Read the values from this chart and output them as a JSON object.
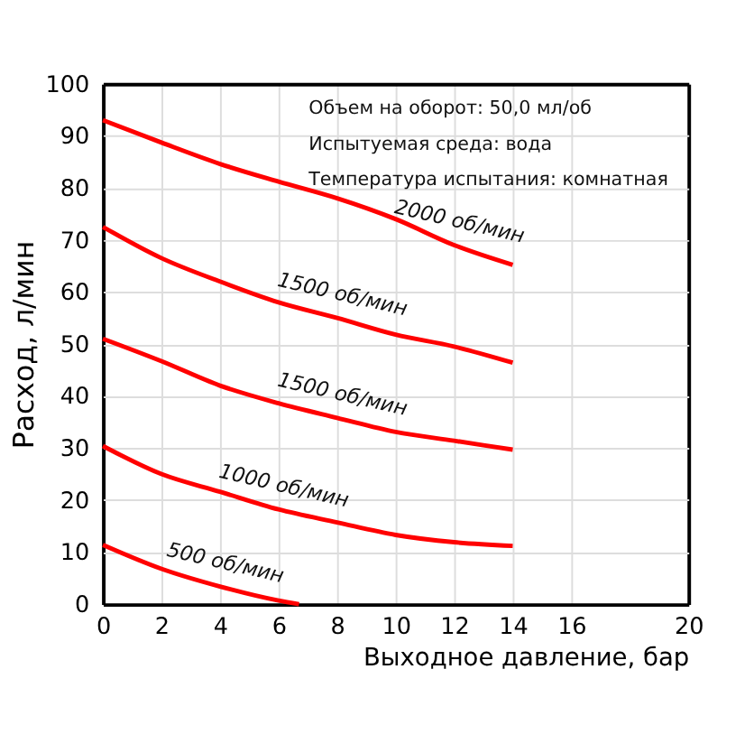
{
  "chart_data": {
    "type": "line",
    "xlabel": "Выходное давление, бар",
    "ylabel": "Расход, л/мин",
    "xlim": [
      0,
      20
    ],
    "xticks": [
      0,
      2,
      4,
      6,
      8,
      10,
      12,
      14,
      16,
      20
    ],
    "ylim": [
      0,
      100
    ],
    "yticks": [
      0,
      10,
      20,
      30,
      40,
      50,
      60,
      70,
      80,
      90,
      100
    ],
    "grid": true,
    "legend": false,
    "marker": "none",
    "line_style": "solid",
    "x": [
      0,
      2,
      4,
      6,
      8,
      10,
      12,
      14
    ],
    "series": [
      {
        "name": "2000 об/мин",
        "color": "#ff0000",
        "values": [
          93,
          88.7,
          84.6,
          81.2,
          78,
          74,
          69,
          65.2
        ]
      },
      {
        "name": "1500 об/мин",
        "color": "#ff0000",
        "values": [
          72.5,
          66.5,
          62,
          58,
          55,
          51.8,
          49.5,
          46.4
        ]
      },
      {
        "name": "1500 об/мин",
        "color": "#ff0000",
        "values": [
          51,
          46.7,
          42,
          38.6,
          35.8,
          33.1,
          31.4,
          29.7
        ]
      },
      {
        "name": "1000 об/мин",
        "color": "#ff0000",
        "values": [
          30.4,
          25,
          21.6,
          18.2,
          15.7,
          13.3,
          11.9,
          11.2
        ]
      },
      {
        "name": "500 об/мин",
        "color": "#ff0000",
        "x": [
          0,
          2,
          4,
          6,
          6.7
        ],
        "values": [
          11.4,
          6.8,
          3.4,
          0.7,
          0
        ]
      }
    ],
    "annotations": [
      "Объем на оборот: 50,0 мл/об",
      "Испытуемая среда: вода",
      "Температура испытания: комнатная"
    ]
  }
}
